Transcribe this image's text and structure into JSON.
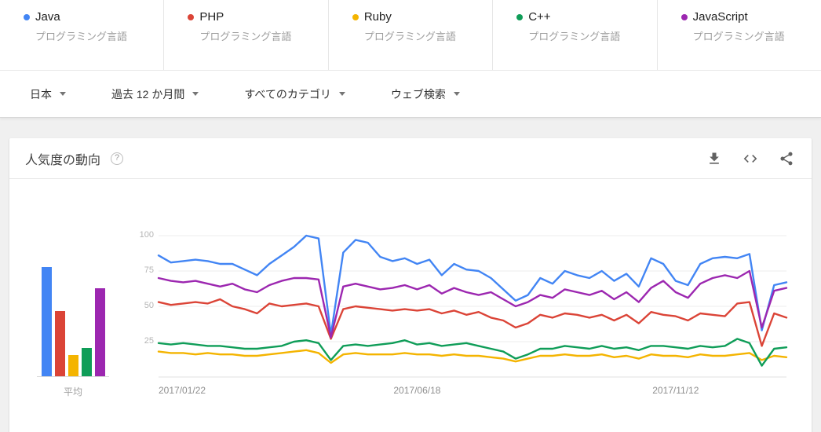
{
  "terms": [
    {
      "name": "Java",
      "subtitle": "プログラミング言語",
      "color": "#4285f4"
    },
    {
      "name": "PHP",
      "subtitle": "プログラミング言語",
      "color": "#db4437"
    },
    {
      "name": "Ruby",
      "subtitle": "プログラミング言語",
      "color": "#f4b400"
    },
    {
      "name": "C++",
      "subtitle": "プログラミング言語",
      "color": "#0f9d58"
    },
    {
      "name": "JavaScript",
      "subtitle": "プログラミング言語",
      "color": "#9c27b0"
    }
  ],
  "filters": [
    {
      "label": "日本"
    },
    {
      "label": "過去 12 か月間"
    },
    {
      "label": "すべてのカテゴリ"
    },
    {
      "label": "ウェブ検索"
    }
  ],
  "panel": {
    "title": "人気度の動向",
    "help_glyph": "?"
  },
  "chart_data": {
    "type": "line",
    "title": "人気度の動向",
    "ylim": [
      0,
      100
    ],
    "y_ticks": [
      25,
      50,
      75,
      100
    ],
    "grid": true,
    "x_tick_labels": [
      "2017/01/22",
      "2017/06/18",
      "2017/11/12"
    ],
    "x_tick_indices": [
      0,
      21,
      42
    ],
    "series": [
      {
        "name": "Java",
        "color": "#4285f4",
        "values": [
          86,
          81,
          82,
          83,
          82,
          80,
          80,
          76,
          72,
          80,
          86,
          92,
          100,
          98,
          30,
          88,
          97,
          95,
          85,
          82,
          84,
          80,
          83,
          72,
          80,
          76,
          75,
          70,
          62,
          54,
          58,
          70,
          66,
          75,
          72,
          70,
          75,
          68,
          73,
          64,
          84,
          80,
          68,
          65,
          80,
          84,
          85,
          84,
          87,
          33,
          65,
          67
        ]
      },
      {
        "name": "PHP",
        "color": "#db4437",
        "values": [
          53,
          51,
          52,
          53,
          52,
          55,
          50,
          48,
          45,
          52,
          50,
          51,
          52,
          50,
          27,
          48,
          50,
          49,
          48,
          47,
          48,
          47,
          48,
          45,
          47,
          44,
          46,
          42,
          40,
          35,
          38,
          44,
          42,
          45,
          44,
          42,
          44,
          40,
          44,
          38,
          46,
          44,
          43,
          40,
          45,
          44,
          43,
          52,
          53,
          22,
          45,
          42
        ]
      },
      {
        "name": "Ruby",
        "color": "#f4b400",
        "values": [
          18,
          17,
          17,
          16,
          17,
          16,
          16,
          15,
          15,
          16,
          17,
          18,
          19,
          17,
          10,
          16,
          17,
          16,
          16,
          16,
          17,
          16,
          16,
          15,
          16,
          15,
          15,
          14,
          13,
          11,
          13,
          15,
          15,
          16,
          15,
          15,
          16,
          14,
          15,
          13,
          16,
          15,
          15,
          14,
          16,
          15,
          15,
          16,
          17,
          12,
          15,
          14
        ]
      },
      {
        "name": "C++",
        "color": "#0f9d58",
        "values": [
          24,
          23,
          24,
          23,
          22,
          22,
          21,
          20,
          20,
          21,
          22,
          25,
          26,
          24,
          12,
          22,
          23,
          22,
          23,
          24,
          26,
          23,
          24,
          22,
          23,
          24,
          22,
          20,
          18,
          13,
          16,
          20,
          20,
          22,
          21,
          20,
          22,
          20,
          21,
          19,
          22,
          22,
          21,
          20,
          22,
          21,
          22,
          27,
          24,
          8,
          20,
          21
        ]
      },
      {
        "name": "JavaScript",
        "color": "#9c27b0",
        "values": [
          70,
          68,
          67,
          68,
          66,
          64,
          66,
          62,
          60,
          65,
          68,
          70,
          70,
          69,
          28,
          64,
          66,
          64,
          62,
          63,
          65,
          62,
          65,
          59,
          63,
          60,
          58,
          60,
          55,
          50,
          53,
          58,
          56,
          62,
          60,
          58,
          61,
          55,
          60,
          53,
          63,
          68,
          60,
          56,
          66,
          70,
          72,
          70,
          75,
          35,
          61,
          63
        ]
      }
    ],
    "averages": {
      "label": "平均",
      "values": [
        {
          "name": "Java",
          "value": 77,
          "color": "#4285f4"
        },
        {
          "name": "PHP",
          "value": 46,
          "color": "#db4437"
        },
        {
          "name": "Ruby",
          "value": 15,
          "color": "#f4b400"
        },
        {
          "name": "C++",
          "value": 20,
          "color": "#0f9d58"
        },
        {
          "name": "JavaScript",
          "value": 62,
          "color": "#9c27b0"
        }
      ]
    }
  }
}
